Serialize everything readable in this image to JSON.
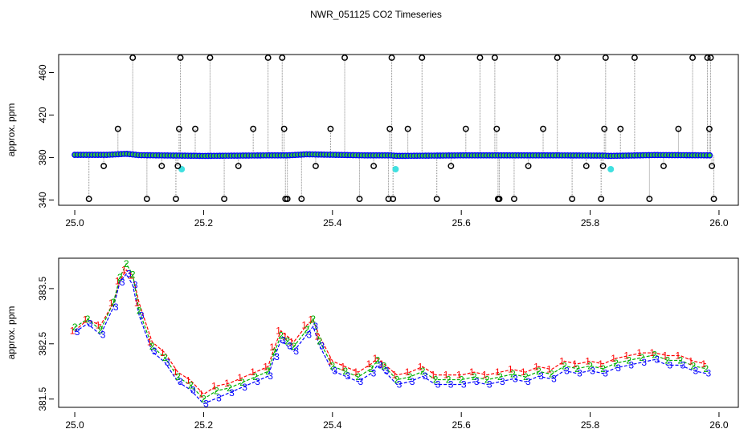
{
  "title": "NWR_051125  CO2 Timeseries",
  "chart_data": [
    {
      "type": "scatter",
      "ylabel": "approx. ppm",
      "xlabel": "",
      "xlim": [
        24.975,
        26.03
      ],
      "ylim": [
        335,
        477
      ],
      "x_ticks": [
        25.0,
        25.2,
        25.4,
        25.6,
        25.8,
        26.0
      ],
      "x_tick_labels": [
        "25.0",
        "25.2",
        "25.4",
        "25.6",
        "25.8",
        "26.0"
      ],
      "y_ticks": [
        340,
        380,
        420,
        460
      ],
      "y_tick_labels": [
        "340",
        "380",
        "420",
        "460"
      ],
      "grid": false,
      "series": [
        {
          "role": "baseline",
          "color": "#0000ff",
          "x": [
            25.0,
            25.05,
            25.08,
            25.1,
            25.16,
            25.2,
            25.3,
            25.33,
            25.36,
            25.45,
            25.49,
            25.5,
            25.6,
            25.66,
            25.75,
            25.82,
            25.83,
            25.9,
            25.99
          ],
          "y": [
            382.5,
            382.5,
            383.5,
            382.2,
            381.8,
            381.5,
            382,
            382,
            383,
            382,
            382,
            381.5,
            382,
            382,
            382,
            381.8,
            381.5,
            382.3,
            382
          ]
        },
        {
          "role": "flagged",
          "color": "#000000",
          "x": [
            25.022,
            25.045,
            25.067,
            25.09,
            25.112,
            25.135,
            25.157,
            25.16,
            25.162,
            25.164,
            25.187,
            25.21,
            25.232,
            25.254,
            25.277,
            25.3,
            25.322,
            25.325,
            25.327,
            25.33,
            25.352,
            25.374,
            25.397,
            25.419,
            25.442,
            25.464,
            25.487,
            25.489,
            25.492,
            25.494,
            25.517,
            25.539,
            25.562,
            25.584,
            25.607,
            25.629,
            25.652,
            25.655,
            25.657,
            25.659,
            25.682,
            25.704,
            25.727,
            25.749,
            25.772,
            25.794,
            25.817,
            25.82,
            25.822,
            25.824,
            25.847,
            25.869,
            25.892,
            25.914,
            25.937,
            25.959,
            25.982,
            25.985,
            25.987,
            25.989,
            25.992
          ],
          "y": [
            341,
            372,
            407,
            474,
            341,
            372,
            341,
            372,
            407,
            474,
            407,
            474,
            341,
            372,
            407,
            474,
            474,
            407,
            341,
            341,
            341,
            372,
            407,
            474,
            341,
            372,
            341,
            407,
            474,
            341,
            407,
            474,
            341,
            372,
            407,
            474,
            474,
            407,
            341,
            341,
            341,
            372,
            407,
            474,
            341,
            372,
            341,
            372,
            407,
            474,
            407,
            474,
            341,
            372,
            407,
            474,
            474,
            407,
            474,
            372,
            341
          ]
        },
        {
          "role": "cyan",
          "color": "#40e0e0",
          "x": [
            25.166,
            25.498,
            25.832
          ],
          "y": [
            369,
            369,
            369
          ]
        }
      ]
    },
    {
      "type": "scatter",
      "ylabel": "approx. ppm",
      "xlabel": "",
      "xlim": [
        24.975,
        26.03
      ],
      "ylim": [
        381.35,
        384.05
      ],
      "x_ticks": [
        25.0,
        25.2,
        25.4,
        25.6,
        25.8,
        26.0
      ],
      "x_tick_labels": [
        "25.0",
        "25.2",
        "25.4",
        "25.6",
        "25.8",
        "26.0"
      ],
      "y_ticks": [
        381.5,
        382.5,
        383.5
      ],
      "y_tick_labels": [
        "381.5",
        "382.5",
        "383.5"
      ],
      "grid": false,
      "series": [
        {
          "name": "1",
          "color": "#ff0000",
          "x": [
            25.0,
            25.02,
            25.04,
            25.06,
            25.07,
            25.08,
            25.09,
            25.1,
            25.12,
            25.14,
            25.16,
            25.18,
            25.2,
            25.22,
            25.24,
            25.26,
            25.28,
            25.3,
            25.31,
            25.32,
            25.33,
            25.34,
            25.36,
            25.37,
            25.38,
            25.4,
            25.42,
            25.44,
            25.46,
            25.47,
            25.48,
            25.5,
            25.52,
            25.54,
            25.56,
            25.58,
            25.6,
            25.62,
            25.64,
            25.66,
            25.68,
            25.7,
            25.72,
            25.74,
            25.76,
            25.78,
            25.8,
            25.82,
            25.84,
            25.86,
            25.88,
            25.9,
            25.92,
            25.94,
            25.96,
            25.98
          ],
          "y": [
            382.7,
            382.9,
            382.8,
            383.2,
            383.6,
            383.8,
            383.7,
            383.2,
            382.5,
            382.3,
            381.95,
            381.8,
            381.55,
            381.7,
            381.75,
            381.85,
            381.95,
            382.05,
            382.4,
            382.7,
            382.6,
            382.5,
            382.8,
            382.9,
            382.6,
            382.15,
            382.05,
            381.95,
            382.1,
            382.2,
            382.1,
            381.9,
            381.95,
            382.05,
            381.9,
            381.9,
            381.9,
            381.95,
            381.9,
            381.95,
            382.0,
            381.95,
            382.05,
            382.0,
            382.15,
            382.1,
            382.15,
            382.1,
            382.2,
            382.25,
            382.3,
            382.3,
            382.25,
            382.25,
            382.15,
            382.1
          ]
        },
        {
          "name": "2",
          "color": "#00b000",
          "x": [
            25.0,
            25.02,
            25.04,
            25.06,
            25.07,
            25.08,
            25.09,
            25.1,
            25.12,
            25.14,
            25.16,
            25.18,
            25.2,
            25.22,
            25.24,
            25.26,
            25.28,
            25.3,
            25.31,
            25.32,
            25.33,
            25.34,
            25.36,
            25.37,
            25.38,
            25.4,
            25.42,
            25.44,
            25.46,
            25.47,
            25.48,
            25.5,
            25.52,
            25.54,
            25.56,
            25.58,
            25.6,
            25.62,
            25.64,
            25.66,
            25.68,
            25.7,
            25.72,
            25.74,
            25.76,
            25.78,
            25.8,
            25.82,
            25.84,
            25.86,
            25.88,
            25.9,
            25.92,
            25.94,
            25.96,
            25.98
          ],
          "y": [
            382.8,
            382.95,
            382.75,
            383.25,
            383.7,
            383.95,
            383.75,
            383.1,
            382.45,
            382.25,
            381.9,
            381.75,
            381.5,
            381.65,
            381.7,
            381.8,
            381.9,
            382.0,
            382.35,
            382.65,
            382.55,
            382.45,
            382.75,
            382.95,
            382.55,
            382.1,
            382.0,
            381.9,
            382.05,
            382.2,
            382.1,
            381.85,
            381.9,
            382.0,
            381.85,
            381.85,
            381.85,
            381.9,
            381.85,
            381.9,
            381.95,
            381.9,
            382.0,
            381.95,
            382.1,
            382.05,
            382.1,
            382.05,
            382.15,
            382.2,
            382.25,
            382.3,
            382.2,
            382.2,
            382.1,
            382.05
          ]
        },
        {
          "name": "3",
          "color": "#0000ff",
          "x": [
            25.0,
            25.02,
            25.04,
            25.06,
            25.07,
            25.08,
            25.09,
            25.1,
            25.12,
            25.14,
            25.16,
            25.18,
            25.2,
            25.22,
            25.24,
            25.26,
            25.28,
            25.3,
            25.31,
            25.32,
            25.33,
            25.34,
            25.36,
            25.37,
            25.38,
            25.4,
            25.42,
            25.44,
            25.46,
            25.47,
            25.48,
            25.5,
            25.52,
            25.54,
            25.56,
            25.58,
            25.6,
            25.62,
            25.64,
            25.66,
            25.68,
            25.7,
            25.72,
            25.74,
            25.76,
            25.78,
            25.8,
            25.82,
            25.84,
            25.86,
            25.88,
            25.9,
            25.92,
            25.94,
            25.96,
            25.98
          ],
          "y": [
            382.75,
            382.9,
            382.7,
            383.2,
            383.65,
            383.8,
            383.6,
            383.05,
            382.4,
            382.2,
            381.85,
            381.7,
            381.45,
            381.55,
            381.65,
            381.75,
            381.85,
            381.95,
            382.3,
            382.6,
            382.5,
            382.4,
            382.7,
            382.85,
            382.5,
            382.05,
            381.95,
            381.85,
            382.0,
            382.15,
            382.05,
            381.8,
            381.85,
            381.95,
            381.8,
            381.8,
            381.8,
            381.85,
            381.8,
            381.85,
            381.9,
            381.85,
            381.95,
            381.9,
            382.05,
            382.0,
            382.05,
            382.0,
            382.1,
            382.15,
            382.2,
            382.25,
            382.15,
            382.15,
            382.05,
            382.0
          ]
        }
      ]
    }
  ]
}
